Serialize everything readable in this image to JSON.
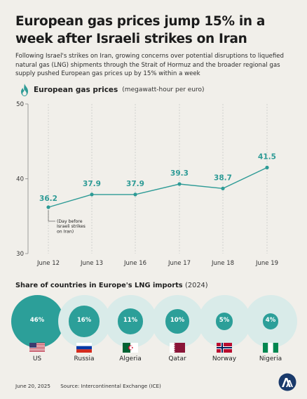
{
  "header": {
    "title": "European gas prices jump 15% in a week after Israeli strikes on Iran",
    "subtitle": "Following Israel's strikes on Iran, growing concerns over potential disruptions to liquefied natural gas (LNG) shipments through the Strait of Hormuz and the broader regional gas supply pushed European gas prices up by 15% within a week"
  },
  "chart_head": {
    "label": "European gas prices",
    "unit": "(megawatt-hour per euro)",
    "icon": "flame-icon"
  },
  "chart_data": [
    {
      "type": "line",
      "title": "European gas prices",
      "ylabel": "(megawatt-hour per euro)",
      "categories": [
        "June 12",
        "June 13",
        "June 16",
        "June 17",
        "June 18",
        "June 19"
      ],
      "values": [
        36.2,
        37.9,
        37.9,
        39.3,
        38.7,
        41.5
      ],
      "value_labels": [
        "36.2",
        "37.9",
        "37.9",
        "39.3",
        "38.7",
        "41.5"
      ],
      "ylim": [
        30,
        50
      ],
      "yticks": [
        "30",
        "40",
        "50"
      ],
      "grid": "vertical dashed",
      "annotation": {
        "category": "June 12",
        "lines": [
          "(Day before",
          "Israeli strikes",
          "on Iran)"
        ]
      },
      "color": "#2e9b96"
    },
    {
      "type": "bubble",
      "title": "Share of countries in Europe's LNG imports",
      "categories": [
        "US",
        "Russia",
        "Algeria",
        "Qatar",
        "Norway",
        "Nigeria"
      ],
      "values": [
        46,
        16,
        11,
        10,
        5,
        4
      ],
      "value_labels": [
        "46%",
        "16%",
        "11%",
        "10%",
        "5%",
        "4%"
      ]
    }
  ],
  "share": {
    "title": "Share of countries in Europe's LNG imports",
    "year": "(2024)",
    "items": [
      {
        "country": "US",
        "pct": "46%",
        "value": 46,
        "flag": "us-flag"
      },
      {
        "country": "Russia",
        "pct": "16%",
        "value": 16,
        "flag": "russia-flag"
      },
      {
        "country": "Algeria",
        "pct": "11%",
        "value": 11,
        "flag": "algeria-flag"
      },
      {
        "country": "Qatar",
        "pct": "10%",
        "value": 10,
        "flag": "qatar-flag"
      },
      {
        "country": "Norway",
        "pct": "5%",
        "value": 5,
        "flag": "norway-flag"
      },
      {
        "country": "Nigeria",
        "pct": "4%",
        "value": 4,
        "flag": "nigeria-flag"
      }
    ]
  },
  "footer": {
    "date": "June 20, 2025",
    "source": "Source: Intercontinental Exchange (ICE)",
    "logo": "aa-logo"
  },
  "colors": {
    "accent": "#2e9b96",
    "bubble_bg": "#d9ebe9",
    "background": "#f1efea"
  }
}
